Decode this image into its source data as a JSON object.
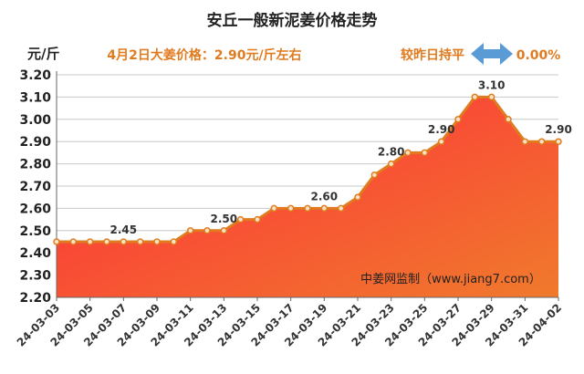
{
  "chart_data": {
    "type": "area",
    "title": "安丘一般新泥姜价格走势",
    "subtitle": "4月2日大姜价格：2.90元/斤左右",
    "ylabel": "元/斤",
    "compare_label": "较昨日持平",
    "compare_value": "0.00%",
    "watermark": "中姜网监制（www.jiang7.com）",
    "ylim": [
      2.2,
      3.2
    ],
    "yticks": [
      "2.20",
      "2.30",
      "2.40",
      "2.50",
      "2.60",
      "2.70",
      "2.80",
      "2.90",
      "3.00",
      "3.10",
      "3.20"
    ],
    "x": [
      "24-03-03",
      "24-03-04",
      "24-03-05",
      "24-03-06",
      "24-03-07",
      "24-03-08",
      "24-03-09",
      "24-03-10",
      "24-03-11",
      "24-03-12",
      "24-03-13",
      "24-03-14",
      "24-03-15",
      "24-03-16",
      "24-03-17",
      "24-03-18",
      "24-03-19",
      "24-03-20",
      "24-03-21",
      "24-03-22",
      "24-03-23",
      "24-03-24",
      "24-03-25",
      "24-03-26",
      "24-03-27",
      "24-03-28",
      "24-03-29",
      "24-03-30",
      "24-03-31",
      "24-04-01",
      "24-04-02"
    ],
    "xtick_labels": [
      "24-03-03",
      "24-03-05",
      "24-03-07",
      "24-03-09",
      "24-03-11",
      "24-03-13",
      "24-03-15",
      "24-03-17",
      "24-03-19",
      "24-03-21",
      "24-03-23",
      "24-03-25",
      "24-03-27",
      "24-03-29",
      "24-03-31",
      "24-04-02"
    ],
    "values": [
      2.45,
      2.45,
      2.45,
      2.45,
      2.45,
      2.45,
      2.45,
      2.45,
      2.5,
      2.5,
      2.5,
      2.55,
      2.55,
      2.6,
      2.6,
      2.6,
      2.6,
      2.6,
      2.65,
      2.75,
      2.8,
      2.85,
      2.85,
      2.9,
      3.0,
      3.1,
      3.1,
      3.0,
      2.9,
      2.9,
      2.9
    ],
    "data_labels": [
      {
        "index": 4,
        "text": "2.45"
      },
      {
        "index": 10,
        "text": "2.50"
      },
      {
        "index": 16,
        "text": "2.60"
      },
      {
        "index": 20,
        "text": "2.80"
      },
      {
        "index": 23,
        "text": "2.90"
      },
      {
        "index": 26,
        "text": "3.10"
      },
      {
        "index": 30,
        "text": "2.90"
      }
    ],
    "colors": {
      "line": "#e07b1f",
      "marker_fill": "#f7e3c4",
      "fill_top": "#ff2a3c",
      "fill_bottom": "#f07a2c",
      "title": "#222222",
      "subtitle": "#e07b1f",
      "compare": "#e07b1f",
      "arrow": "#5b9bd5",
      "grid": "#c8c8c8"
    }
  }
}
